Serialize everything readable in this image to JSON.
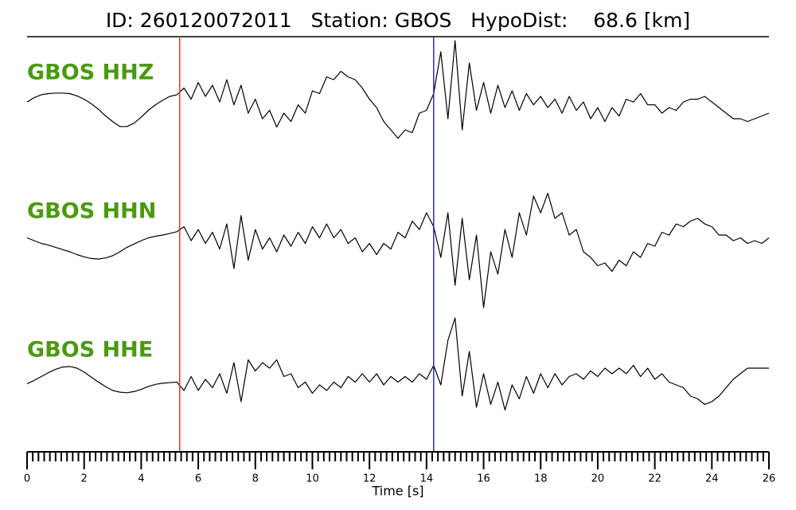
{
  "chart_data": {
    "type": "line",
    "title": "ID: 260120072011   Station: GBOS   HypoDist:    68.6 [km]",
    "xlabel": "Time [s]",
    "xlim": [
      0,
      26
    ],
    "xticks": [
      0,
      2,
      4,
      6,
      8,
      10,
      12,
      14,
      16,
      18,
      20,
      22,
      24,
      26
    ],
    "minor_xticks": [
      0.2,
      0.4,
      0.6,
      0.8,
      1,
      1.2,
      1.4,
      1.6,
      1.8,
      2.2,
      2.4,
      2.6,
      2.8,
      3,
      3.2,
      3.4,
      3.6,
      3.8,
      4.2,
      4.4,
      4.6,
      4.8,
      5,
      5.2,
      5.4,
      5.6,
      5.8,
      6.2,
      6.4,
      6.6,
      6.8,
      7,
      7.2,
      7.4,
      7.6,
      7.8,
      8.2,
      8.4,
      8.6,
      8.8,
      9,
      9.2,
      9.4,
      9.6,
      9.8,
      10.2,
      10.4,
      10.6,
      10.8,
      11,
      11.2,
      11.4,
      11.6,
      11.8,
      12.2,
      12.4,
      12.6,
      12.8,
      13,
      13.2,
      13.4,
      13.6,
      13.8,
      14.2,
      14.4,
      14.6,
      14.8,
      15,
      15.2,
      15.4,
      15.6,
      15.8,
      16.2,
      16.4,
      16.6,
      16.8,
      17,
      17.2,
      17.4,
      17.6,
      17.8,
      18.2,
      18.4,
      18.6,
      18.8,
      19,
      19.2,
      19.4,
      19.6,
      19.8,
      20.2,
      20.4,
      20.6,
      20.8,
      21,
      21.2,
      21.4,
      21.6,
      21.8,
      22.2,
      22.4,
      22.6,
      22.8,
      23,
      23.2,
      23.4,
      23.6,
      23.8,
      24.2,
      24.4,
      24.6,
      24.8,
      25,
      25.2,
      25.4,
      25.6,
      25.8
    ],
    "ylim": [
      -1.2,
      1.2
    ],
    "label_color": "#4a9a0f",
    "picks": [
      {
        "x": 5.35,
        "color": "#e8322f"
      },
      {
        "x": 14.25,
        "color": "#2a2ad0"
      }
    ],
    "x": [
      0,
      0.25,
      0.5,
      0.75,
      1,
      1.25,
      1.5,
      1.75,
      2,
      2.25,
      2.5,
      2.75,
      3,
      3.25,
      3.5,
      3.75,
      4,
      4.25,
      4.5,
      4.75,
      5,
      5.25,
      5.5,
      5.75,
      6,
      6.25,
      6.5,
      6.75,
      7,
      7.25,
      7.5,
      7.75,
      8,
      8.25,
      8.5,
      8.75,
      9,
      9.25,
      9.5,
      9.75,
      10,
      10.25,
      10.5,
      10.75,
      11,
      11.25,
      11.5,
      11.75,
      12,
      12.25,
      12.5,
      12.75,
      13,
      13.25,
      13.5,
      13.75,
      14,
      14.25,
      14.5,
      14.75,
      15,
      15.25,
      15.5,
      15.75,
      16,
      16.25,
      16.5,
      16.75,
      17,
      17.25,
      17.5,
      17.75,
      18,
      18.25,
      18.5,
      18.75,
      19,
      19.25,
      19.5,
      19.75,
      20,
      20.25,
      20.5,
      20.75,
      21,
      21.25,
      21.5,
      21.75,
      22,
      22.25,
      22.5,
      22.75,
      23,
      23.25,
      23.5,
      23.75,
      24,
      24.25,
      24.5,
      24.75,
      25,
      25.25,
      25.5,
      25.75,
      26
    ],
    "series": [
      {
        "name": "GBOS HHZ",
        "color": "#000000",
        "values": [
          0,
          0.08,
          0.13,
          0.15,
          0.16,
          0.16,
          0.15,
          0.11,
          0.05,
          -0.03,
          -0.13,
          -0.25,
          -0.35,
          -0.44,
          -0.44,
          -0.38,
          -0.27,
          -0.15,
          -0.05,
          0.03,
          0.1,
          0.13,
          0.25,
          0.05,
          0.35,
          0.1,
          0.3,
          0.0,
          0.4,
          -0.05,
          0.3,
          -0.2,
          0.05,
          -0.3,
          -0.15,
          -0.45,
          -0.2,
          -0.35,
          -0.05,
          -0.2,
          0.2,
          0.15,
          0.45,
          0.4,
          0.55,
          0.45,
          0.4,
          0.25,
          0.05,
          -0.1,
          -0.35,
          -0.5,
          -0.65,
          -0.5,
          -0.55,
          -0.2,
          -0.15,
          0.15,
          0.9,
          -0.3,
          1.1,
          -0.5,
          0.7,
          -0.15,
          0.35,
          -0.2,
          0.3,
          -0.1,
          0.2,
          -0.15,
          0.15,
          -0.05,
          0.1,
          -0.1,
          0.05,
          -0.2,
          0.1,
          -0.15,
          0.0,
          -0.3,
          -0.1,
          -0.35,
          -0.1,
          -0.25,
          0.05,
          0.0,
          0.15,
          -0.05,
          -0.05,
          -0.2,
          -0.1,
          -0.15,
          0.0,
          0.05,
          0.05,
          0.1,
          0.0,
          -0.1,
          -0.2,
          -0.3,
          -0.3,
          -0.35,
          -0.3,
          -0.25,
          -0.2
        ]
      },
      {
        "name": "GBOS HHN",
        "color": "#000000",
        "values": [
          0.05,
          0.0,
          -0.05,
          -0.08,
          -0.12,
          -0.16,
          -0.2,
          -0.25,
          -0.29,
          -0.32,
          -0.33,
          -0.31,
          -0.27,
          -0.2,
          -0.12,
          -0.06,
          0.0,
          0.05,
          0.08,
          0.1,
          0.13,
          0.16,
          0.25,
          0.0,
          0.2,
          -0.05,
          0.15,
          -0.15,
          0.3,
          -0.5,
          0.45,
          -0.35,
          0.2,
          -0.15,
          0.05,
          -0.2,
          0.1,
          -0.1,
          0.15,
          -0.05,
          0.25,
          0.05,
          0.3,
          0.05,
          0.2,
          -0.05,
          0.05,
          -0.2,
          -0.05,
          -0.25,
          -0.05,
          -0.15,
          0.15,
          0.05,
          0.35,
          0.2,
          0.5,
          0.25,
          -0.3,
          0.5,
          -0.8,
          0.4,
          -0.7,
          0.1,
          -1.2,
          -0.2,
          -0.6,
          0.2,
          -0.3,
          0.5,
          0.1,
          0.8,
          0.5,
          0.85,
          0.4,
          0.5,
          0.1,
          0.2,
          -0.2,
          -0.3,
          -0.45,
          -0.4,
          -0.55,
          -0.35,
          -0.45,
          -0.2,
          -0.3,
          -0.05,
          -0.1,
          0.15,
          0.1,
          0.3,
          0.25,
          0.35,
          0.4,
          0.3,
          0.25,
          0.1,
          0.1,
          0.0,
          0.05,
          -0.05,
          0.0,
          -0.05,
          0.05
        ]
      },
      {
        "name": "GBOS HHE",
        "color": "#000000",
        "values": [
          -0.08,
          -0.02,
          0.05,
          0.12,
          0.18,
          0.22,
          0.23,
          0.2,
          0.13,
          0.04,
          -0.05,
          -0.13,
          -0.2,
          -0.23,
          -0.24,
          -0.22,
          -0.18,
          -0.13,
          -0.09,
          -0.07,
          -0.06,
          -0.05,
          -0.2,
          0.05,
          -0.2,
          0.0,
          -0.15,
          0.1,
          -0.25,
          0.3,
          -0.4,
          0.35,
          0.15,
          0.3,
          0.2,
          0.35,
          0.05,
          0.1,
          -0.15,
          -0.05,
          -0.25,
          -0.1,
          -0.2,
          -0.05,
          -0.15,
          0.05,
          -0.05,
          0.1,
          -0.05,
          0.1,
          -0.1,
          0.05,
          -0.05,
          0.05,
          -0.05,
          0.1,
          0.0,
          0.25,
          -0.1,
          0.7,
          1.1,
          -0.3,
          0.5,
          -0.5,
          0.1,
          -0.45,
          -0.05,
          -0.55,
          -0.1,
          -0.35,
          0.05,
          -0.25,
          0.1,
          -0.15,
          0.1,
          -0.1,
          0.05,
          0.1,
          0.0,
          0.15,
          0.05,
          0.2,
          0.1,
          0.2,
          0.1,
          0.25,
          0.05,
          0.2,
          0.0,
          0.1,
          -0.05,
          -0.1,
          -0.15,
          -0.3,
          -0.35,
          -0.45,
          -0.4,
          -0.3,
          -0.15,
          0.0,
          0.1,
          0.2,
          0.2,
          0.2,
          0.2
        ]
      }
    ]
  }
}
